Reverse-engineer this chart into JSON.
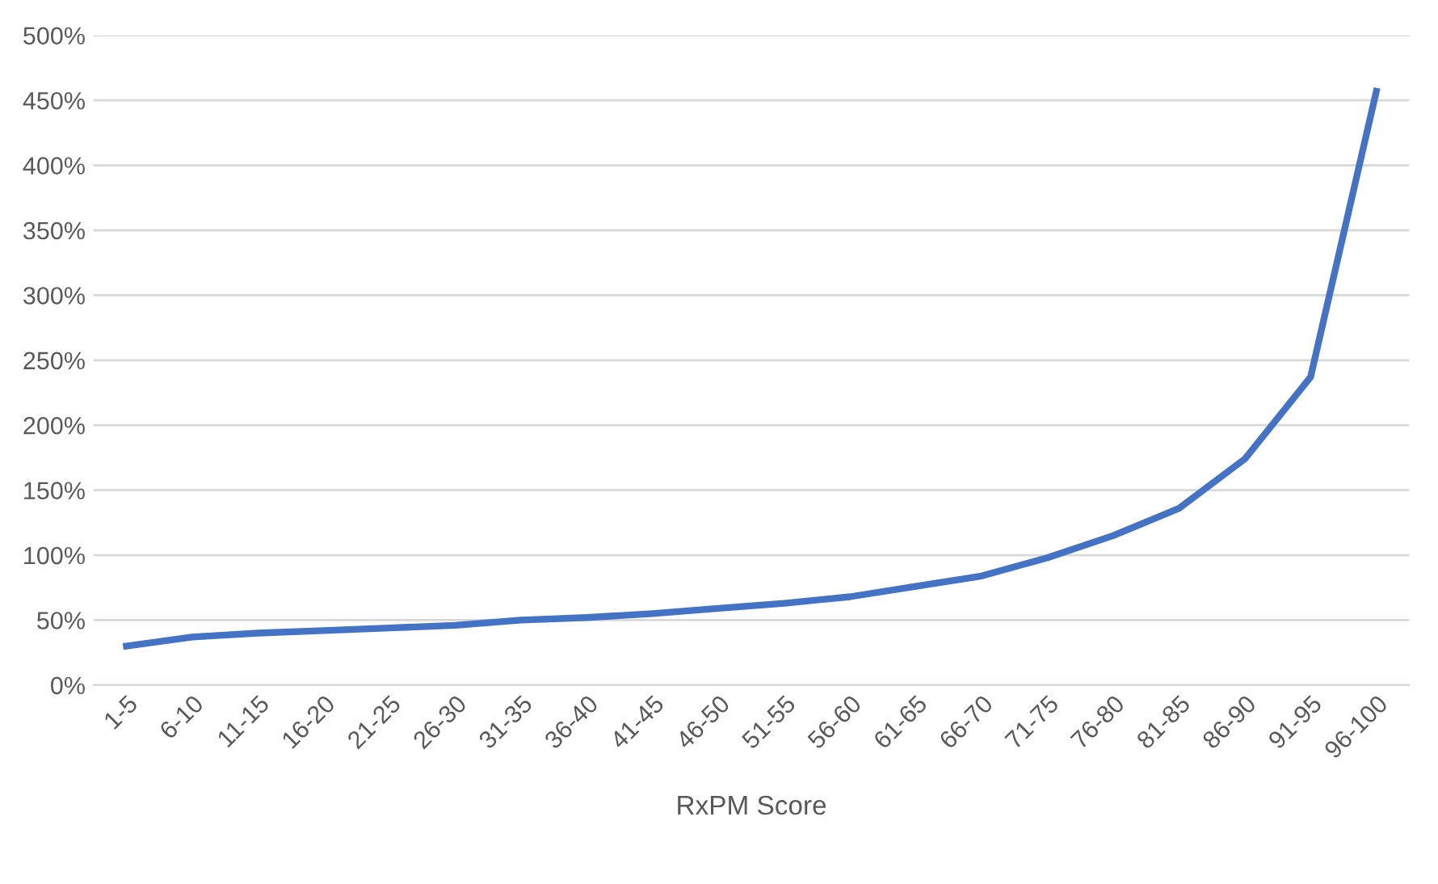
{
  "chart_data": {
    "type": "line",
    "xlabel": "RxPM Score",
    "categories": [
      "1-5",
      "6-10",
      "11-15",
      "16-20",
      "21-25",
      "26-30",
      "31-35",
      "36-40",
      "41-45",
      "46-50",
      "51-55",
      "56-60",
      "61-65",
      "66-70",
      "71-75",
      "76-80",
      "81-85",
      "86-90",
      "91-95",
      "96-100"
    ],
    "series": [
      {
        "color": "#4472c4",
        "values": [
          30,
          37,
          40,
          42,
          44,
          46,
          50,
          52,
          55,
          59,
          63,
          68,
          76,
          84,
          98,
          115,
          136,
          174,
          237,
          457
        ]
      }
    ],
    "ylim": [
      0,
      500
    ],
    "yticks": [
      {
        "value": 0,
        "label": "0%"
      },
      {
        "value": 50,
        "label": "50%"
      },
      {
        "value": 100,
        "label": "100%"
      },
      {
        "value": 150,
        "label": "150%"
      },
      {
        "value": 200,
        "label": "200%"
      },
      {
        "value": 250,
        "label": "250%"
      },
      {
        "value": 300,
        "label": "300%"
      },
      {
        "value": 350,
        "label": "350%"
      },
      {
        "value": 400,
        "label": "400%"
      },
      {
        "value": 450,
        "label": "450%"
      },
      {
        "value": 500,
        "label": "500%"
      }
    ],
    "grid": "y",
    "legend": false,
    "marker": "none",
    "line_style": "solid"
  }
}
